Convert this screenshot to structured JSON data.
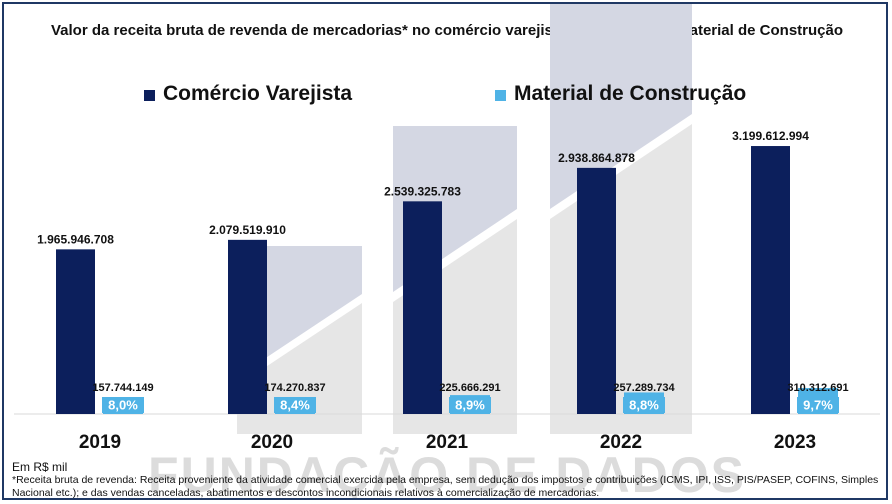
{
  "title": "Valor da receita bruta de revenda de mercadorias* no comércio varejista Brasil x varejo Material de Construção",
  "legend": [
    {
      "label": "Comércio Varejista",
      "color": "#0c1f5c"
    },
    {
      "label": "Material de Construção",
      "color": "#4fb3e6"
    }
  ],
  "watermark": "FUNDAÇÃO DE DADOS",
  "unit_note": "Em R$ mil",
  "footnote": "*Receita bruta de revenda: Receita proveniente da atividade comercial exercida pela empresa, sem dedução dos impostos e contribuições (ICMS, IPI, ISS, PIS/PASEP, COFINS, Simples Nacional etc.); e das vendas canceladas, abatimentos e descontos incondicionais relativos à comercialização de mercadorias.",
  "chart_data": {
    "type": "bar",
    "categories": [
      "2019",
      "2020",
      "2021",
      "2022",
      "2023"
    ],
    "series": [
      {
        "name": "Comércio Varejista",
        "color": "#0c1f5c",
        "values": [
          1965946708,
          2079519910,
          2539325783,
          2938864878,
          3199612994
        ],
        "value_labels": [
          "1.965.946.708",
          "2.079.519.910",
          "2.539.325.783",
          "2.938.864.878",
          "3.199.612.994"
        ]
      },
      {
        "name": "Material de Construção",
        "color": "#4fb3e6",
        "values": [
          157744149,
          174270837,
          225666291,
          257289734,
          310312691
        ],
        "value_labels": [
          "157.744.149",
          "174.270.837",
          "225.666.291",
          "257.289.734",
          "310.312.691"
        ],
        "share_labels": [
          "8,0%",
          "8,4%",
          "8,9%",
          "8,8%",
          "9,7%"
        ]
      }
    ],
    "ylim": [
      0,
      3200000000
    ]
  }
}
